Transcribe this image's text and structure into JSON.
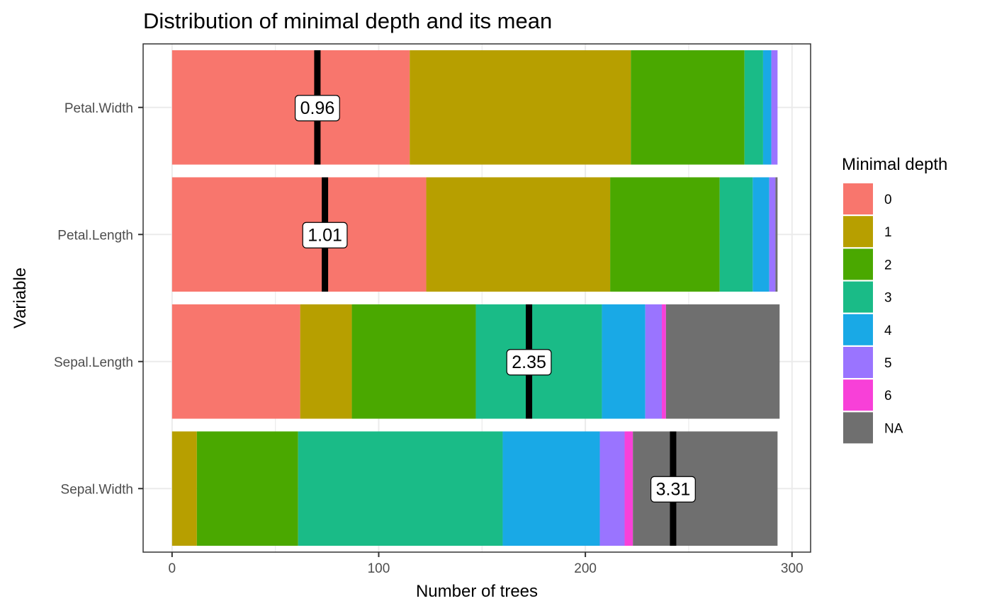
{
  "chart_data": {
    "type": "bar",
    "orientation": "horizontal",
    "stacked": true,
    "title": "Distribution of minimal depth and its mean",
    "xlabel": "Number of trees",
    "ylabel": "Variable",
    "xlim": [
      -14,
      309
    ],
    "xticks": [
      0,
      100,
      200,
      300
    ],
    "categories": [
      "Petal.Width",
      "Petal.Length",
      "Sepal.Length",
      "Sepal.Width"
    ],
    "legend": {
      "title": "Minimal depth",
      "position": "right"
    },
    "series": [
      {
        "name": "0",
        "color": "#F8766D",
        "values": [
          115,
          123,
          62,
          0
        ]
      },
      {
        "name": "1",
        "color": "#B79F00",
        "values": [
          107,
          89,
          25,
          12
        ]
      },
      {
        "name": "2",
        "color": "#4AA800",
        "values": [
          55,
          53,
          60,
          49
        ]
      },
      {
        "name": "3",
        "color": "#1ABB87",
        "values": [
          9,
          16,
          61,
          99
        ]
      },
      {
        "name": "4",
        "color": "#19A9E6",
        "values": [
          4,
          8,
          21,
          47
        ]
      },
      {
        "name": "5",
        "color": "#9A74FF",
        "values": [
          3,
          3,
          8,
          12
        ]
      },
      {
        "name": "6",
        "color": "#F840D8",
        "values": [
          0,
          0,
          2,
          4
        ]
      },
      {
        "name": "NA",
        "color": "#6F6F6F",
        "values": [
          0,
          1,
          55,
          70
        ]
      }
    ],
    "means": [
      {
        "category": "Petal.Width",
        "value": 0.96,
        "label": "0.96"
      },
      {
        "category": "Petal.Length",
        "value": 1.01,
        "label": "1.01"
      },
      {
        "category": "Sepal.Length",
        "value": 2.35,
        "label": "2.35"
      },
      {
        "category": "Sepal.Width",
        "value": 3.31,
        "label": "3.31"
      }
    ]
  }
}
